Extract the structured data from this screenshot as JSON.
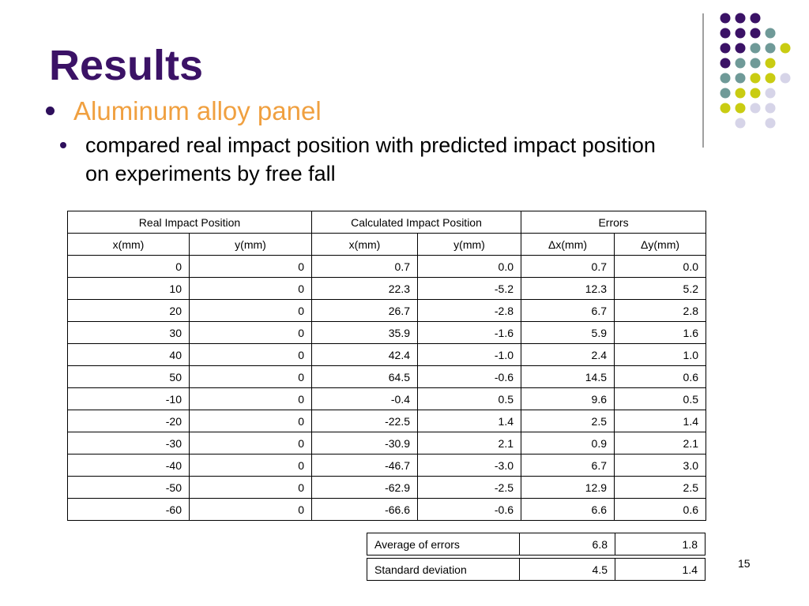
{
  "slide": {
    "title": "Results",
    "bullet_1": "Aluminum alloy panel",
    "bullet_2": "compared real impact position with predicted impact position on experiments by free fall",
    "page_number": "15"
  },
  "colors": {
    "title": "#3b1266",
    "bullet_1_text": "#f0a040",
    "bullet_1_dot": "#2e0f5c",
    "bullet_2_dot": "#2e0f5c",
    "dot_purple": "#3b1266",
    "dot_teal": "#6f9a98",
    "dot_yellow": "#c9cc12",
    "dot_lavender": "#d6d4e8",
    "divider": "#808080"
  },
  "table": {
    "group_headers": [
      "Real Impact Position",
      "Calculated Impact Position",
      "Errors"
    ],
    "sub_headers": [
      "x(mm)",
      "y(mm)",
      "x(mm)",
      "y(mm)",
      "Δx(mm)",
      "Δy(mm)"
    ],
    "rows": [
      [
        "0",
        "0",
        "0.7",
        "0.0",
        "0.7",
        "0.0"
      ],
      [
        "10",
        "0",
        "22.3",
        "-5.2",
        "12.3",
        "5.2"
      ],
      [
        "20",
        "0",
        "26.7",
        "-2.8",
        "6.7",
        "2.8"
      ],
      [
        "30",
        "0",
        "35.9",
        "-1.6",
        "5.9",
        "1.6"
      ],
      [
        "40",
        "0",
        "42.4",
        "-1.0",
        "2.4",
        "1.0"
      ],
      [
        "50",
        "0",
        "64.5",
        "-0.6",
        "14.5",
        "0.6"
      ],
      [
        "-10",
        "0",
        "-0.4",
        "0.5",
        "9.6",
        "0.5"
      ],
      [
        "-20",
        "0",
        "-22.5",
        "1.4",
        "2.5",
        "1.4"
      ],
      [
        "-30",
        "0",
        "-30.9",
        "2.1",
        "0.9",
        "2.1"
      ],
      [
        "-40",
        "0",
        "-46.7",
        "-3.0",
        "6.7",
        "3.0"
      ],
      [
        "-50",
        "0",
        "-62.9",
        "-2.5",
        "12.9",
        "2.5"
      ],
      [
        "-60",
        "0",
        "-66.6",
        "-0.6",
        "6.6",
        "0.6"
      ]
    ]
  },
  "summary": {
    "average": {
      "label": "Average of errors",
      "dx": "6.8",
      "dy": "1.8"
    },
    "stddev": {
      "label": "Standard deviation",
      "dx": "4.5",
      "dy": "1.4"
    }
  },
  "decoration": {
    "dot_grid": [
      [
        "purple",
        "purple",
        "purple",
        null
      ],
      [
        "purple",
        "purple",
        "purple",
        "teal"
      ],
      [
        "purple",
        "purple",
        "teal",
        "teal",
        "yellow"
      ],
      [
        "purple",
        "teal",
        "teal",
        "yellow"
      ],
      [
        "teal",
        "teal",
        "yellow",
        "yellow",
        "lavender"
      ],
      [
        "teal",
        "yellow",
        "yellow",
        "lavender"
      ],
      [
        "yellow",
        "yellow",
        "lavender",
        "lavender"
      ],
      [
        null,
        "lavender",
        null,
        "lavender"
      ]
    ]
  }
}
